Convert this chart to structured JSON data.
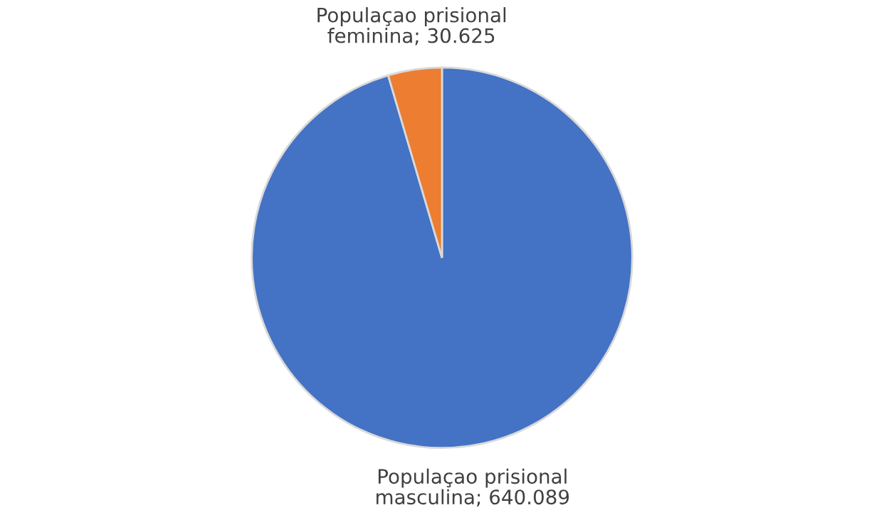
{
  "chart_data": {
    "type": "pie",
    "categories": [
      "Populaçao prisional masculina",
      "Populaçao prisional feminina"
    ],
    "values": [
      640089,
      30625
    ],
    "value_labels": [
      "640.089",
      "30.625"
    ],
    "colors": [
      "#4472c4",
      "#ed7d31"
    ],
    "legend": false
  }
}
